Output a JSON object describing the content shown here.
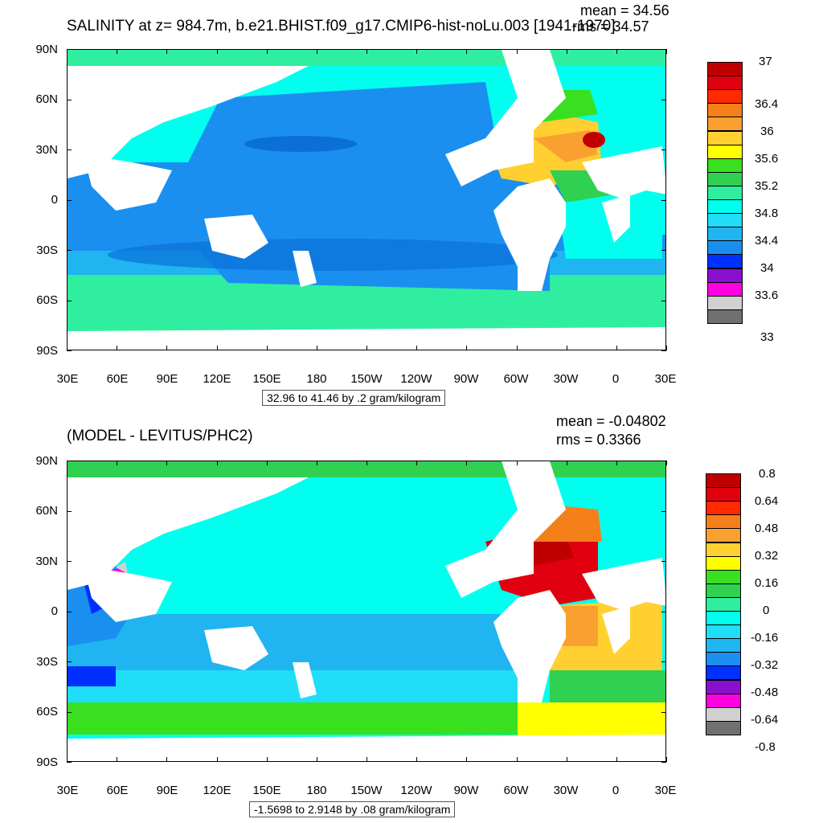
{
  "top": {
    "title": "SALINITY at z= 984.7m, b.e21.BHIST.f09_g17.CMIP6-hist-noLu.003 [1941-1970]",
    "mean": "mean = 34.56",
    "rms": "rms = 34.57",
    "info": "32.96 to 41.46 by .2 gram/kilogram",
    "colorbar_labels": [
      "37",
      "36.4",
      "36",
      "35.6",
      "35.2",
      "34.8",
      "34.4",
      "34",
      "33.6",
      "33"
    ],
    "colorbar_colors": [
      "#c00000",
      "#e00010",
      "#ff2a00",
      "#f5801a",
      "#f9a030",
      "#ffd030",
      "#ffff00",
      "#38e020",
      "#30d050",
      "#30eea0",
      "#00ffee",
      "#20ddf8",
      "#20b4f0",
      "#1a8ff0",
      "#0030ff",
      "#8a10d0",
      "#ff00e0",
      "#d0d0d0",
      "#707070"
    ]
  },
  "bottom": {
    "title": "(MODEL - LEVITUS/PHC2)",
    "mean": "mean = -0.04802",
    "rms": "rms = 0.3366",
    "info": "-1.5698 to 2.9148 by .08 gram/kilogram",
    "colorbar_labels": [
      "0.8",
      "0.64",
      "0.48",
      "0.32",
      "0.16",
      "0",
      "-0.16",
      "-0.32",
      "-0.48",
      "-0.64",
      "-0.8"
    ],
    "colorbar_colors": [
      "#c00000",
      "#e00010",
      "#ff2a00",
      "#f5801a",
      "#f9a030",
      "#ffd030",
      "#ffff00",
      "#38e020",
      "#30d050",
      "#30eea0",
      "#00ffee",
      "#20ddf8",
      "#20b4f0",
      "#1a8ff0",
      "#0030ff",
      "#8a10d0",
      "#ff00e0",
      "#d0d0d0",
      "#707070"
    ]
  },
  "lat_labels": [
    "90N",
    "60N",
    "30N",
    "0",
    "30S",
    "60S",
    "90S"
  ],
  "lon_labels": [
    "30E",
    "60E",
    "90E",
    "120E",
    "150E",
    "180",
    "150W",
    "120W",
    "90W",
    "60W",
    "30W",
    "0",
    "30E"
  ],
  "colors": {
    "land": "#ffffff",
    "frame": "#000000"
  }
}
